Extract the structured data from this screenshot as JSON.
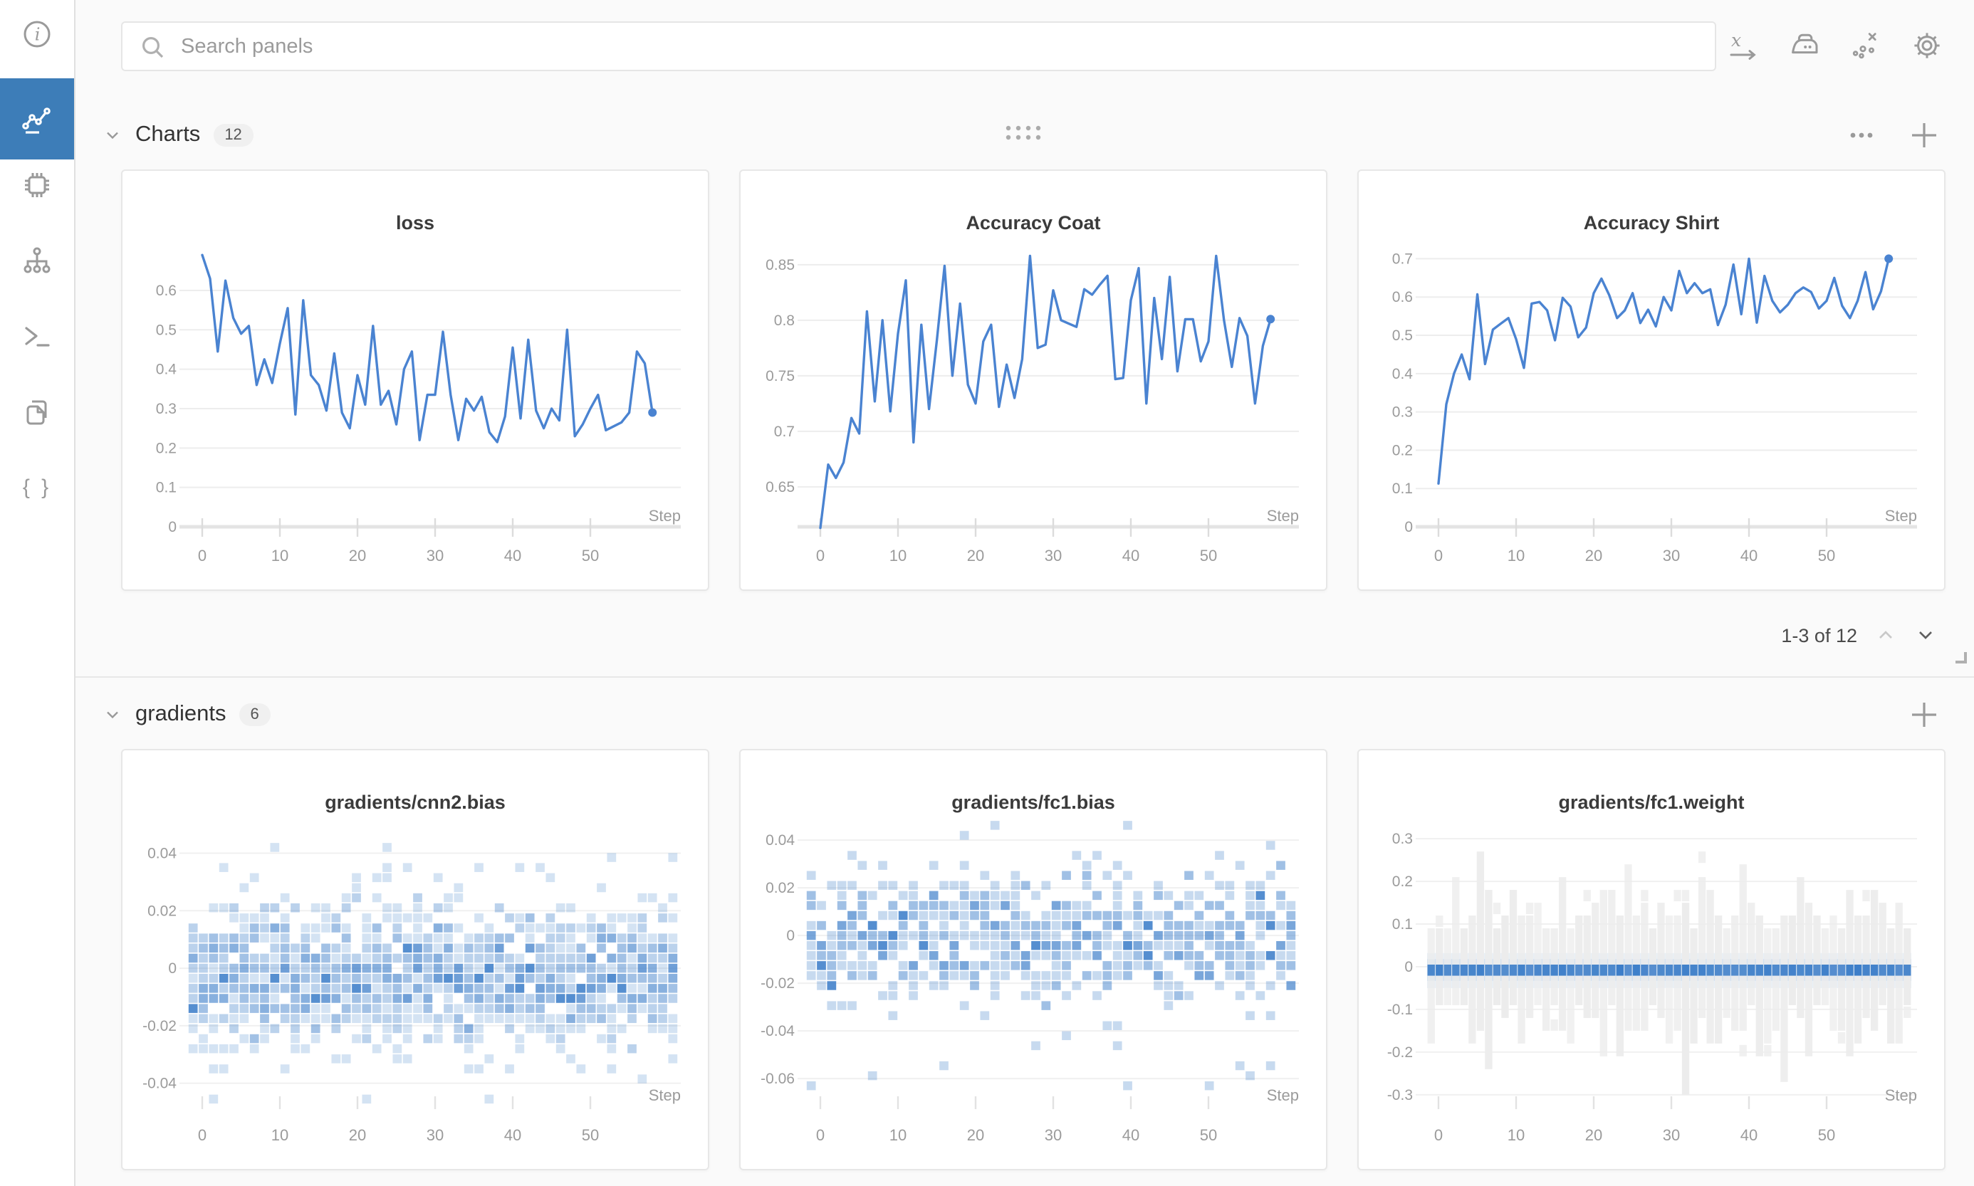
{
  "search": {
    "placeholder": "Search panels"
  },
  "sidebar": {
    "items": [
      {
        "icon": "info-icon"
      },
      {
        "icon": "line-chart-icon",
        "active": true
      },
      {
        "icon": "chip-icon"
      },
      {
        "icon": "model-graph-icon"
      },
      {
        "icon": "terminal-icon"
      },
      {
        "icon": "files-icon"
      },
      {
        "icon": "braces-icon"
      }
    ]
  },
  "toolbar": {
    "icons": [
      "x-axis-icon",
      "smoothing-iron-icon",
      "outlier-points-icon",
      "settings-gear-icon"
    ]
  },
  "sections": [
    {
      "label": "Charts",
      "count": "12",
      "pagination": {
        "label": "1-3 of 12"
      }
    },
    {
      "label": "gradients",
      "count": "6"
    }
  ],
  "step_label": "Step",
  "colors": {
    "accent": "#3d7db8",
    "line_blue": "#4a83d1",
    "heat_blue": "#3d7ec9",
    "heat_gray": "#ececec",
    "band_light_blue": "#b9cfe8"
  },
  "chart_data": [
    {
      "type": "line",
      "title": "loss",
      "xlabel": "Step",
      "x_ticks": [
        "0",
        "10",
        "20",
        "30",
        "40",
        "50"
      ],
      "y_ticks": [
        "0",
        "0.1",
        "0.2",
        "0.3",
        "0.4",
        "0.5",
        "0.6"
      ],
      "ylim": [
        0,
        0.73
      ],
      "end_dot": true,
      "values": [
        0.69,
        0.63,
        0.445,
        0.625,
        0.53,
        0.49,
        0.51,
        0.36,
        0.425,
        0.365,
        0.465,
        0.555,
        0.285,
        0.575,
        0.385,
        0.36,
        0.295,
        0.44,
        0.29,
        0.25,
        0.385,
        0.31,
        0.51,
        0.31,
        0.345,
        0.26,
        0.4,
        0.445,
        0.22,
        0.335,
        0.335,
        0.495,
        0.335,
        0.22,
        0.325,
        0.295,
        0.33,
        0.24,
        0.215,
        0.28,
        0.455,
        0.275,
        0.475,
        0.295,
        0.25,
        0.3,
        0.27,
        0.5,
        0.23,
        0.26,
        0.3,
        0.335,
        0.245,
        0.255,
        0.265,
        0.29,
        0.445,
        0.415,
        0.29
      ]
    },
    {
      "type": "line",
      "title": "Accuracy Coat",
      "xlabel": "Step",
      "x_ticks": [
        "0",
        "10",
        "20",
        "30",
        "40",
        "50"
      ],
      "y_ticks": [
        "0.65",
        "0.7",
        "0.75",
        "0.8",
        "0.85"
      ],
      "ylim": [
        0.614,
        0.873
      ],
      "end_dot": true,
      "values": [
        0.613,
        0.67,
        0.658,
        0.672,
        0.712,
        0.698,
        0.808,
        0.727,
        0.8,
        0.718,
        0.788,
        0.836,
        0.69,
        0.796,
        0.72,
        0.782,
        0.849,
        0.75,
        0.815,
        0.742,
        0.725,
        0.781,
        0.796,
        0.722,
        0.76,
        0.73,
        0.765,
        0.858,
        0.775,
        0.778,
        0.827,
        0.8,
        0.797,
        0.794,
        0.828,
        0.823,
        0.832,
        0.84,
        0.747,
        0.748,
        0.818,
        0.847,
        0.725,
        0.82,
        0.765,
        0.839,
        0.754,
        0.801,
        0.801,
        0.763,
        0.781,
        0.858,
        0.8,
        0.758,
        0.802,
        0.786,
        0.725,
        0.777,
        0.801
      ]
    },
    {
      "type": "line",
      "title": "Accuracy Shirt",
      "xlabel": "Step",
      "x_ticks": [
        "0",
        "10",
        "20",
        "30",
        "40",
        "50"
      ],
      "y_ticks": [
        "0",
        "0.1",
        "0.2",
        "0.3",
        "0.4",
        "0.5",
        "0.6",
        "0.7"
      ],
      "ylim": [
        0,
        0.751
      ],
      "end_dot": true,
      "values": [
        0.113,
        0.32,
        0.4,
        0.45,
        0.385,
        0.607,
        0.425,
        0.515,
        0.53,
        0.545,
        0.49,
        0.415,
        0.583,
        0.587,
        0.565,
        0.487,
        0.598,
        0.575,
        0.495,
        0.52,
        0.61,
        0.648,
        0.605,
        0.545,
        0.565,
        0.61,
        0.532,
        0.567,
        0.523,
        0.6,
        0.565,
        0.668,
        0.61,
        0.636,
        0.61,
        0.62,
        0.527,
        0.58,
        0.685,
        0.555,
        0.7,
        0.533,
        0.655,
        0.59,
        0.56,
        0.58,
        0.61,
        0.625,
        0.613,
        0.57,
        0.59,
        0.65,
        0.577,
        0.545,
        0.59,
        0.665,
        0.568,
        0.615,
        0.7
      ]
    },
    {
      "type": "heatmap",
      "title": "gradients/cnn2.bias",
      "xlabel": "Step",
      "x_ticks": [
        "0",
        "10",
        "20",
        "30",
        "40",
        "50"
      ],
      "y_ticks": [
        "0.04",
        "0.02",
        "0",
        "-0.02",
        "-0.04"
      ],
      "ylim": [
        -0.048,
        0.052
      ],
      "cols": 48,
      "samples": 26,
      "center": -0.003,
      "sigma": 0.011,
      "bin": 0.0035,
      "alpha_k": 0.13,
      "outlier": 0.046,
      "seed": 11
    },
    {
      "type": "heatmap",
      "title": "gradients/fc1.bias",
      "xlabel": "Step",
      "x_ticks": [
        "0",
        "10",
        "20",
        "30",
        "40",
        "50"
      ],
      "y_ticks": [
        "0.04",
        "0.02",
        "0",
        "-0.02",
        "-0.04",
        "-0.06"
      ],
      "ylim": [
        -0.0716,
        0.049
      ],
      "cols": 48,
      "samples": 13,
      "center": -0.001,
      "sigma": 0.0135,
      "bin": 0.0042,
      "alpha_k": 0.2,
      "outlier": 0.065,
      "seed": 77
    },
    {
      "type": "heatmap-band",
      "title": "gradients/fc1.weight",
      "xlabel": "Step",
      "x_ticks": [
        "0",
        "10",
        "20",
        "30",
        "40",
        "50"
      ],
      "y_ticks": [
        "0.3",
        "0.2",
        "0.1",
        "0",
        "-0.1",
        "-0.2",
        "-0.3"
      ],
      "ylim": [
        -0.327,
        0.347
      ],
      "cols": 59,
      "seed": 5,
      "gray_base": 0.08,
      "gray_var": 0.07,
      "quant": 0.03,
      "core": [
        0.005,
        -0.021
      ],
      "band1": [
        0.032,
        -0.05
      ],
      "band2": [
        0.018,
        -0.033
      ]
    }
  ]
}
